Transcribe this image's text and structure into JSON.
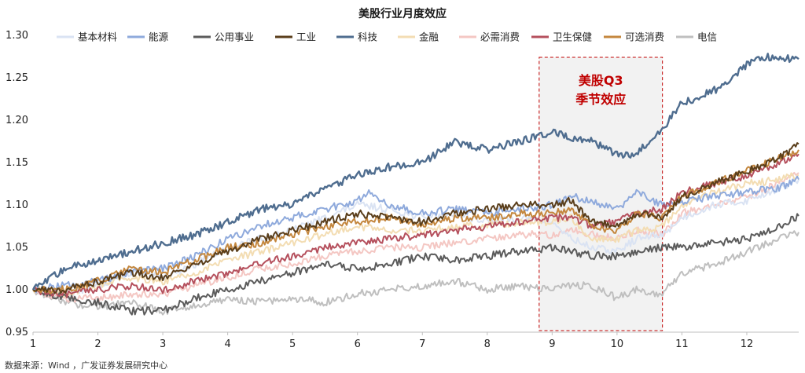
{
  "chart_data": {
    "type": "line",
    "title": "美股行业月度效应",
    "xlabel": "",
    "ylabel": "",
    "x_ticks": [
      "1",
      "2",
      "3",
      "4",
      "5",
      "6",
      "7",
      "8",
      "9",
      "10",
      "11",
      "12"
    ],
    "xlim": [
      1,
      12.8
    ],
    "ylim": [
      0.95,
      1.3
    ],
    "y_ticks": [
      "0.95",
      "1.00",
      "1.05",
      "1.10",
      "1.15",
      "1.20",
      "1.25",
      "1.30"
    ],
    "grid": false,
    "legend_position": "top",
    "highlight": {
      "x_range": [
        8.8,
        10.7
      ],
      "label_line1": "美股Q3",
      "label_line2": "季节效应",
      "text_color": "#c00000",
      "fill": "#f2f2f2",
      "border": "#c00000"
    },
    "series": [
      {
        "name": "基本材料",
        "color": "#dae3f3",
        "points": [
          [
            1,
            1.0
          ],
          [
            1.5,
            0.995
          ],
          [
            2,
            1.005
          ],
          [
            2.5,
            1.02
          ],
          [
            3,
            1.015
          ],
          [
            3.5,
            1.03
          ],
          [
            4,
            1.05
          ],
          [
            4.5,
            1.06
          ],
          [
            5,
            1.07
          ],
          [
            5.5,
            1.085
          ],
          [
            6,
            1.1
          ],
          [
            6.5,
            1.095
          ],
          [
            7,
            1.085
          ],
          [
            7.5,
            1.09
          ],
          [
            8,
            1.08
          ],
          [
            8.5,
            1.085
          ],
          [
            9,
            1.08
          ],
          [
            9.3,
            1.06
          ],
          [
            9.6,
            1.05
          ],
          [
            10,
            1.045
          ],
          [
            10.3,
            1.06
          ],
          [
            10.7,
            1.065
          ],
          [
            11,
            1.085
          ],
          [
            11.5,
            1.1
          ],
          [
            12,
            1.105
          ],
          [
            12.5,
            1.12
          ],
          [
            12.8,
            1.13
          ]
        ]
      },
      {
        "name": "能源",
        "color": "#8faadc",
        "points": [
          [
            1,
            1.0
          ],
          [
            1.5,
            1.005
          ],
          [
            2,
            1.01
          ],
          [
            2.5,
            1.02
          ],
          [
            3,
            1.025
          ],
          [
            3.5,
            1.04
          ],
          [
            4,
            1.06
          ],
          [
            4.5,
            1.075
          ],
          [
            5,
            1.085
          ],
          [
            5.5,
            1.095
          ],
          [
            6,
            1.105
          ],
          [
            6.2,
            1.115
          ],
          [
            6.5,
            1.1
          ],
          [
            7,
            1.09
          ],
          [
            7.5,
            1.095
          ],
          [
            8,
            1.09
          ],
          [
            8.5,
            1.095
          ],
          [
            9,
            1.1
          ],
          [
            9.3,
            1.11
          ],
          [
            9.6,
            1.105
          ],
          [
            10,
            1.095
          ],
          [
            10.3,
            1.115
          ],
          [
            10.7,
            1.1
          ],
          [
            11,
            1.105
          ],
          [
            11.5,
            1.11
          ],
          [
            12,
            1.115
          ],
          [
            12.5,
            1.12
          ],
          [
            12.8,
            1.13
          ]
        ]
      },
      {
        "name": "公用事业",
        "color": "#5b5b5b",
        "points": [
          [
            1,
            1.0
          ],
          [
            1.5,
            0.99
          ],
          [
            2,
            0.985
          ],
          [
            2.5,
            0.975
          ],
          [
            3,
            0.975
          ],
          [
            3.5,
            0.99
          ],
          [
            4,
            1.0
          ],
          [
            4.5,
            1.01
          ],
          [
            5,
            1.02
          ],
          [
            5.5,
            1.03
          ],
          [
            6,
            1.025
          ],
          [
            6.5,
            1.03
          ],
          [
            7,
            1.04
          ],
          [
            7.5,
            1.035
          ],
          [
            8,
            1.04
          ],
          [
            8.5,
            1.045
          ],
          [
            9,
            1.05
          ],
          [
            9.3,
            1.045
          ],
          [
            9.6,
            1.04
          ],
          [
            10,
            1.04
          ],
          [
            10.3,
            1.045
          ],
          [
            10.7,
            1.05
          ],
          [
            11,
            1.05
          ],
          [
            11.5,
            1.055
          ],
          [
            12,
            1.06
          ],
          [
            12.5,
            1.075
          ],
          [
            12.8,
            1.087
          ]
        ]
      },
      {
        "name": "工业",
        "color": "#5a3e1b",
        "points": [
          [
            1,
            1.0
          ],
          [
            1.5,
            1.0
          ],
          [
            2,
            1.01
          ],
          [
            2.5,
            1.02
          ],
          [
            3,
            1.015
          ],
          [
            3.5,
            1.03
          ],
          [
            4,
            1.045
          ],
          [
            4.5,
            1.06
          ],
          [
            5,
            1.07
          ],
          [
            5.5,
            1.08
          ],
          [
            6,
            1.09
          ],
          [
            6.5,
            1.085
          ],
          [
            7,
            1.08
          ],
          [
            7.5,
            1.09
          ],
          [
            8,
            1.095
          ],
          [
            8.5,
            1.1
          ],
          [
            9,
            1.1
          ],
          [
            9.3,
            1.105
          ],
          [
            9.6,
            1.08
          ],
          [
            10,
            1.075
          ],
          [
            10.3,
            1.09
          ],
          [
            10.7,
            1.085
          ],
          [
            11,
            1.11
          ],
          [
            11.5,
            1.125
          ],
          [
            12,
            1.14
          ],
          [
            12.5,
            1.155
          ],
          [
            12.8,
            1.172
          ]
        ]
      },
      {
        "name": "科技",
        "color": "#4f6d8f",
        "points": [
          [
            1,
            1.0
          ],
          [
            1.5,
            1.025
          ],
          [
            2,
            1.035
          ],
          [
            2.5,
            1.045
          ],
          [
            3,
            1.055
          ],
          [
            3.5,
            1.065
          ],
          [
            4,
            1.08
          ],
          [
            4.5,
            1.095
          ],
          [
            5,
            1.1
          ],
          [
            5.5,
            1.12
          ],
          [
            6,
            1.135
          ],
          [
            6.5,
            1.145
          ],
          [
            7,
            1.15
          ],
          [
            7.5,
            1.175
          ],
          [
            8,
            1.165
          ],
          [
            8.5,
            1.175
          ],
          [
            9,
            1.185
          ],
          [
            9.3,
            1.18
          ],
          [
            9.6,
            1.175
          ],
          [
            10,
            1.16
          ],
          [
            10.3,
            1.16
          ],
          [
            10.7,
            1.19
          ],
          [
            11,
            1.22
          ],
          [
            11.5,
            1.235
          ],
          [
            12,
            1.265
          ],
          [
            12.3,
            1.275
          ],
          [
            12.8,
            1.272
          ]
        ]
      },
      {
        "name": "金融",
        "color": "#f3ddb3",
        "points": [
          [
            1,
            1.0
          ],
          [
            1.5,
            0.995
          ],
          [
            2,
            1.005
          ],
          [
            2.5,
            1.015
          ],
          [
            3,
            1.01
          ],
          [
            3.5,
            1.02
          ],
          [
            4,
            1.035
          ],
          [
            4.5,
            1.045
          ],
          [
            5,
            1.055
          ],
          [
            5.5,
            1.065
          ],
          [
            6,
            1.075
          ],
          [
            6.5,
            1.07
          ],
          [
            7,
            1.07
          ],
          [
            7.5,
            1.075
          ],
          [
            8,
            1.075
          ],
          [
            8.5,
            1.08
          ],
          [
            9,
            1.08
          ],
          [
            9.3,
            1.085
          ],
          [
            9.6,
            1.06
          ],
          [
            10,
            1.06
          ],
          [
            10.3,
            1.07
          ],
          [
            10.7,
            1.075
          ],
          [
            11,
            1.1
          ],
          [
            11.5,
            1.115
          ],
          [
            12,
            1.125
          ],
          [
            12.5,
            1.13
          ],
          [
            12.8,
            1.135
          ]
        ]
      },
      {
        "name": "必需消费",
        "color": "#f4c7c3",
        "points": [
          [
            1,
            1.0
          ],
          [
            1.5,
            0.99
          ],
          [
            2,
            0.99
          ],
          [
            2.5,
            0.995
          ],
          [
            3,
            0.995
          ],
          [
            3.5,
            1.005
          ],
          [
            4,
            1.015
          ],
          [
            4.5,
            1.025
          ],
          [
            5,
            1.03
          ],
          [
            5.5,
            1.04
          ],
          [
            6,
            1.045
          ],
          [
            6.5,
            1.05
          ],
          [
            7,
            1.05
          ],
          [
            7.5,
            1.055
          ],
          [
            8,
            1.06
          ],
          [
            8.5,
            1.065
          ],
          [
            9,
            1.065
          ],
          [
            9.3,
            1.07
          ],
          [
            9.6,
            1.065
          ],
          [
            10,
            1.06
          ],
          [
            10.3,
            1.07
          ],
          [
            10.7,
            1.065
          ],
          [
            11,
            1.09
          ],
          [
            11.5,
            1.1
          ],
          [
            12,
            1.11
          ],
          [
            12.5,
            1.125
          ],
          [
            12.8,
            1.138
          ]
        ]
      },
      {
        "name": "卫生保健",
        "color": "#b5505d",
        "points": [
          [
            1,
            1.0
          ],
          [
            1.5,
            0.995
          ],
          [
            2,
            1.0
          ],
          [
            2.5,
            1.005
          ],
          [
            3,
            1.0
          ],
          [
            3.5,
            1.01
          ],
          [
            4,
            1.02
          ],
          [
            4.5,
            1.03
          ],
          [
            5,
            1.04
          ],
          [
            5.5,
            1.05
          ],
          [
            6,
            1.055
          ],
          [
            6.5,
            1.06
          ],
          [
            7,
            1.065
          ],
          [
            7.5,
            1.07
          ],
          [
            8,
            1.075
          ],
          [
            8.5,
            1.08
          ],
          [
            9,
            1.085
          ],
          [
            9.3,
            1.085
          ],
          [
            9.6,
            1.075
          ],
          [
            10,
            1.08
          ],
          [
            10.3,
            1.09
          ],
          [
            10.7,
            1.095
          ],
          [
            11,
            1.115
          ],
          [
            11.5,
            1.125
          ],
          [
            12,
            1.135
          ],
          [
            12.5,
            1.15
          ],
          [
            12.8,
            1.16
          ]
        ]
      },
      {
        "name": "可选消费",
        "color": "#c4873e",
        "points": [
          [
            1,
            1.0
          ],
          [
            1.5,
            1.0
          ],
          [
            2,
            1.01
          ],
          [
            2.5,
            1.025
          ],
          [
            3,
            1.02
          ],
          [
            3.5,
            1.035
          ],
          [
            4,
            1.05
          ],
          [
            4.5,
            1.055
          ],
          [
            5,
            1.065
          ],
          [
            5.5,
            1.075
          ],
          [
            6,
            1.08
          ],
          [
            6.5,
            1.085
          ],
          [
            7,
            1.075
          ],
          [
            7.5,
            1.085
          ],
          [
            8,
            1.085
          ],
          [
            8.5,
            1.09
          ],
          [
            9,
            1.09
          ],
          [
            9.3,
            1.095
          ],
          [
            9.6,
            1.075
          ],
          [
            10,
            1.07
          ],
          [
            10.3,
            1.09
          ],
          [
            10.7,
            1.085
          ],
          [
            11,
            1.11
          ],
          [
            11.5,
            1.125
          ],
          [
            12,
            1.14
          ],
          [
            12.5,
            1.155
          ],
          [
            12.8,
            1.165
          ]
        ]
      },
      {
        "name": "电信",
        "color": "#bfbfbf",
        "points": [
          [
            1,
            1.0
          ],
          [
            1.5,
            0.985
          ],
          [
            2,
            0.98
          ],
          [
            2.5,
            0.985
          ],
          [
            3,
            0.975
          ],
          [
            3.5,
            0.98
          ],
          [
            4,
            0.99
          ],
          [
            4.5,
            0.985
          ],
          [
            5,
            0.99
          ],
          [
            5.5,
            0.985
          ],
          [
            6,
            0.995
          ],
          [
            6.5,
            1.0
          ],
          [
            7,
            1.005
          ],
          [
            7.5,
            1.01
          ],
          [
            8,
            1.0
          ],
          [
            8.5,
            1.005
          ],
          [
            9,
            1.0
          ],
          [
            9.3,
            1.005
          ],
          [
            9.6,
            1.005
          ],
          [
            10,
            0.99
          ],
          [
            10.3,
            1.0
          ],
          [
            10.7,
            0.995
          ],
          [
            11,
            1.02
          ],
          [
            11.5,
            1.03
          ],
          [
            12,
            1.045
          ],
          [
            12.5,
            1.06
          ],
          [
            12.8,
            1.068
          ]
        ]
      }
    ]
  },
  "source_note": "数据来源：Wind ，广发证券发展研究中心"
}
